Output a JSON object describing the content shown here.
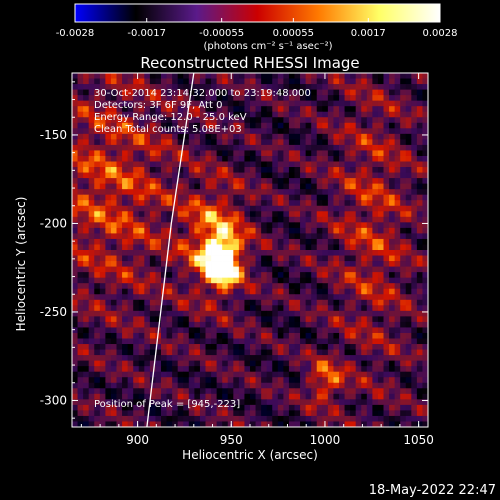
{
  "colorbar": {
    "ticks": [
      "-0.0028",
      "-0.0017",
      "-0.00055",
      "0.00055",
      "0.0017",
      "0.0028"
    ],
    "tick_values": [
      -0.0028,
      -0.0017,
      -0.00055,
      0.00055,
      0.0017,
      0.0028
    ],
    "label": "(photons cm⁻² s⁻¹ asec⁻²)",
    "range": [
      -0.0028,
      0.0028
    ],
    "colors": [
      "#0000ff",
      "#000000",
      "#5a1a8a",
      "#cc0000",
      "#ff7a00",
      "#ffff66",
      "#ffffff"
    ]
  },
  "chart_data": {
    "type": "heatmap",
    "title": "Reconstructed RHESSI Image",
    "xlabel": "Heliocentric X (arcsec)",
    "ylabel": "Heliocentric Y (arcsec)",
    "xlim": [
      865,
      1055
    ],
    "ylim": [
      -315,
      -115
    ],
    "xticks": [
      900,
      950,
      1000,
      1050
    ],
    "yticks": [
      -150,
      -200,
      -250,
      -300
    ],
    "annotations": [
      "30-Oct-2014 23:14:32.000 to 23:19:48.000",
      "Detectors: 3F 6F 9F, Att 0",
      "Energy Range: 12.0 - 25.0 keV",
      "Clean     Total counts: 5.08E+03",
      "Position of Peak = [945,-223]"
    ],
    "peak": {
      "x": 945,
      "y": -223
    },
    "limb": [
      [
        930,
        -115
      ],
      [
        918,
        -200
      ],
      [
        905,
        -315
      ]
    ],
    "sources": [
      {
        "x": 945,
        "y": -222,
        "amp": 0.0028,
        "sx": 6,
        "sy": 9
      },
      {
        "x": 942,
        "y": -210,
        "amp": 0.0016,
        "sx": 12,
        "sy": 22
      },
      {
        "x": 1000,
        "y": -290,
        "amp": 0.0014,
        "sx": 7,
        "sy": 9
      },
      {
        "x": 885,
        "y": -180,
        "amp": 0.0011,
        "sx": 25,
        "sy": 45
      },
      {
        "x": 1025,
        "y": -200,
        "amp": 0.0009,
        "sx": 15,
        "sy": 60
      }
    ]
  },
  "footer": {
    "timestamp": "18-May-2022 22:47"
  }
}
